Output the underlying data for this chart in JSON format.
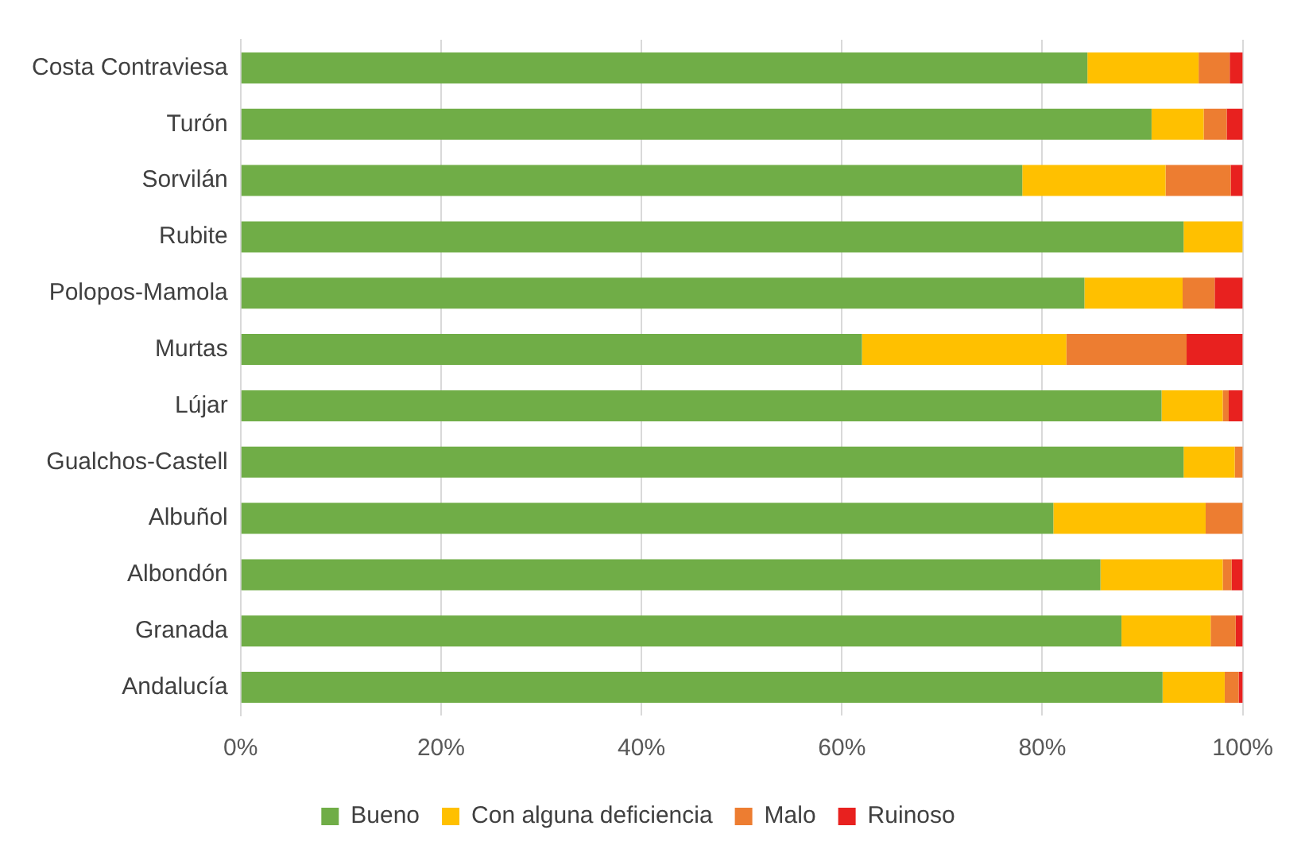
{
  "chart_data": {
    "type": "bar",
    "orientation": "horizontal",
    "stacked": true,
    "categories": [
      "Costa Contraviesa",
      "Turón",
      "Sorvilán",
      "Rubite",
      "Polopos-Mamola",
      "Murtas",
      "Lújar",
      "Gualchos-Castell",
      "Albuñol",
      "Albondón",
      "Granada",
      "Andalucía"
    ],
    "series": [
      {
        "name": "Bueno",
        "color": "#70ad47",
        "values": [
          84.5,
          90.9,
          78.0,
          94.1,
          84.2,
          62.0,
          91.9,
          94.1,
          81.1,
          85.8,
          87.9,
          92.0
        ]
      },
      {
        "name": "Con alguna deficiencia",
        "color": "#ffc000",
        "values": [
          11.1,
          5.2,
          14.3,
          5.9,
          9.8,
          20.4,
          6.1,
          5.1,
          15.2,
          12.2,
          8.9,
          6.2
        ]
      },
      {
        "name": "Malo",
        "color": "#ed7d31",
        "values": [
          3.1,
          2.3,
          6.5,
          0,
          3.2,
          12.0,
          0.6,
          0.8,
          3.7,
          0.9,
          2.5,
          1.4
        ]
      },
      {
        "name": "Ruinoso",
        "color": "#e8211f",
        "values": [
          1.3,
          1.6,
          1.2,
          0,
          2.8,
          5.6,
          1.4,
          0,
          0,
          1.1,
          0.7,
          0.4
        ]
      }
    ],
    "xlim": [
      0,
      100
    ],
    "xticks": [
      {
        "value": 0,
        "label": "0%"
      },
      {
        "value": 20,
        "label": "20%"
      },
      {
        "value": 40,
        "label": "40%"
      },
      {
        "value": 60,
        "label": "60%"
      },
      {
        "value": 80,
        "label": "80%"
      },
      {
        "value": 100,
        "label": "100%"
      }
    ],
    "grid": "x",
    "legend": "bottom"
  }
}
